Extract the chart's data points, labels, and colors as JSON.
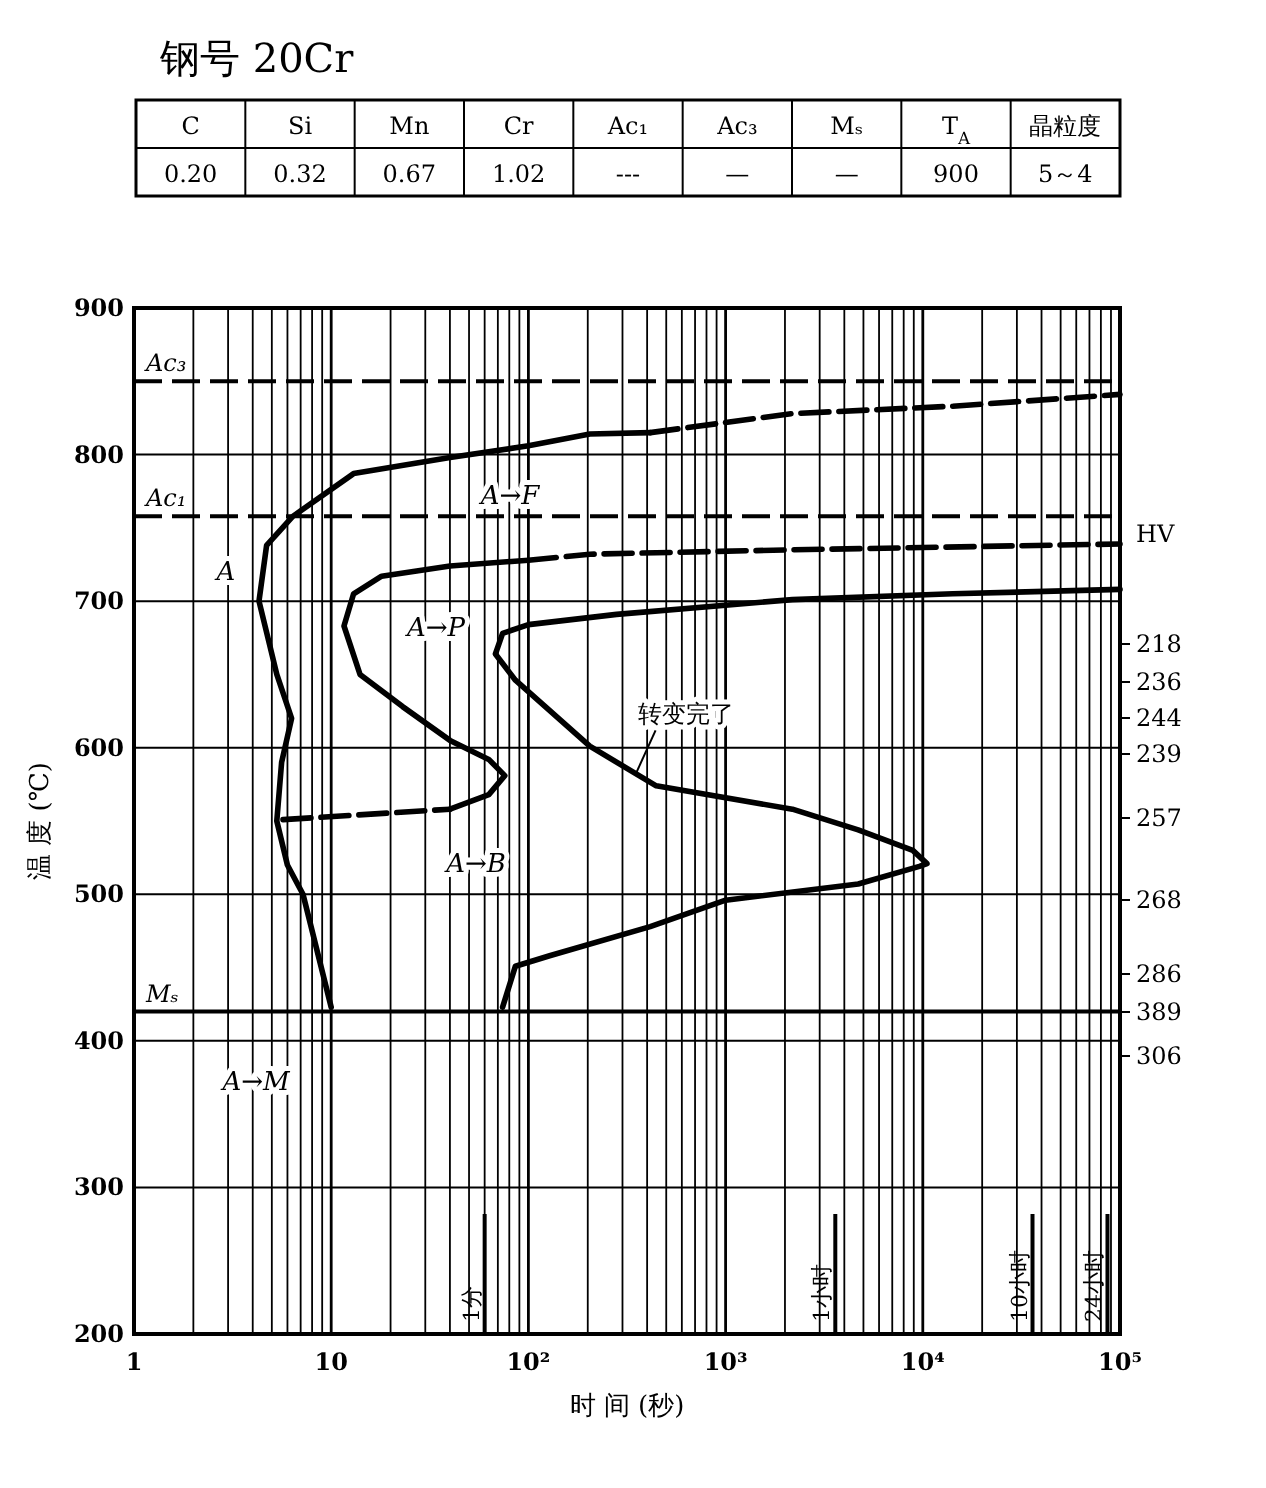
{
  "chart_data": [
    {
      "type": "other",
      "title": "钢号 20Cr",
      "annotations": [
        "C",
        "Si",
        "Mn",
        "Cr",
        "Ac₁",
        "Ac₃",
        "Mₛ",
        "T$_{A}$",
        "晶粒度",
        "0.20",
        "0.32",
        "0.67",
        "1.02",
        "---",
        "—",
        "—",
        "900",
        "5～4"
      ]
    },
    {
      "type": "line",
      "xlabel": "时 间 (秒)",
      "ylabel": "温 度 (℃)",
      "log": "x",
      "grid": true,
      "xlim": [
        1,
        100000
      ],
      "ylim": [
        200,
        900
      ],
      "xticks": [
        1,
        10,
        {
          "value": 100,
          "label": "10²"
        },
        {
          "value": 1000,
          "label": "10³"
        },
        {
          "value": 10000,
          "label": "10⁴"
        },
        {
          "value": 100000,
          "label": "10⁵"
        }
      ],
      "yticks": [
        200,
        300,
        400,
        500,
        600,
        700,
        800,
        900
      ],
      "series": [
        {
          "color": "#000000",
          "line_style": "solid",
          "x": [
            10,
            7.2,
            6.0,
            5.3,
            5.6,
            6.3,
            5.3,
            4.3,
            4.7,
            6.4,
            13,
            40,
            100,
            205,
            415
          ],
          "values": [
            423,
            500,
            520,
            550,
            590,
            620,
            650,
            700,
            738,
            758,
            787,
            798,
            806,
            814,
            815
          ]
        },
        {
          "color": "#000000",
          "line_style": "dashed",
          "x": [
            415,
            2180,
            14200,
            100000
          ],
          "values": [
            815,
            828,
            833,
            841
          ]
        },
        {
          "color": "#000000",
          "line_style": "dashed",
          "x": [
            5.7,
            40
          ],
          "values": [
            551,
            558
          ]
        },
        {
          "color": "#000000",
          "line_style": "solid",
          "x": [
            40,
            63,
            76,
            63,
            40,
            23,
            14,
            11.6,
            13,
            18,
            40,
            100
          ],
          "values": [
            558,
            568,
            581,
            592,
            605,
            628,
            650,
            683,
            705,
            717,
            724,
            728
          ]
        },
        {
          "color": "#000000",
          "line_style": "dashed",
          "x": [
            100,
            205,
            2180,
            100000
          ],
          "values": [
            728,
            732,
            735,
            739
          ]
        },
        {
          "color": "#000000",
          "line_style": "solid",
          "x": [
            74,
            86,
            128,
            415,
            1000,
            4700,
            9600,
            10500,
            8900,
            4700,
            2180,
            445,
            205,
            86,
            68,
            74,
            100,
            280,
            2180,
            14200,
            100000
          ],
          "values": [
            423,
            451,
            458,
            478,
            496,
            507,
            519,
            521,
            530,
            544,
            558,
            574,
            601,
            646,
            664,
            678,
            684,
            691,
            701,
            705,
            708
          ]
        }
      ],
      "ref_lines": [
        {
          "axis": "y",
          "value": 850,
          "label": "Ac₃",
          "line_style": "dashed"
        },
        {
          "axis": "y",
          "value": 758,
          "label": "Ac₁",
          "line_style": "dashed"
        },
        {
          "axis": "y",
          "value": 420,
          "label": "Mₛ",
          "line_style": "solid"
        },
        {
          "axis": "x",
          "value": 60,
          "label": "1分",
          "line_style": "solid"
        },
        {
          "axis": "x",
          "value": 3600,
          "label": "1小时",
          "line_style": "solid"
        },
        {
          "axis": "x",
          "value": 36000,
          "label": "10小时",
          "line_style": "solid"
        },
        {
          "axis": "x",
          "value": 86400,
          "label": "24小时",
          "line_style": "solid"
        }
      ],
      "annotations": [
        "A→F",
        "A",
        "A→P",
        "A→B",
        "A→M",
        {
          "text": "转变完了",
          "x": 350,
          "y": 582
        },
        "HV",
        "218",
        "236",
        "244",
        "239",
        "257",
        "268",
        "286",
        "389",
        "306"
      ]
    }
  ]
}
